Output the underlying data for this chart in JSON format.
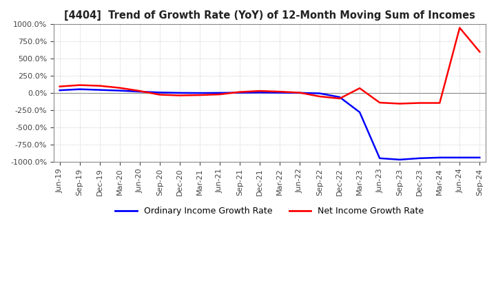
{
  "title": "[4404]  Trend of Growth Rate (YoY) of 12-Month Moving Sum of Incomes",
  "ylim": [
    -1000,
    1000
  ],
  "yticks": [
    -1000,
    -750,
    -500,
    -250,
    0,
    250,
    500,
    750,
    1000
  ],
  "background_color": "#FFFFFF",
  "grid_color": "#BBBBBB",
  "legend_labels": [
    "Ordinary Income Growth Rate",
    "Net Income Growth Rate"
  ],
  "legend_colors": [
    "#0000FF",
    "#FF0000"
  ],
  "x_labels": [
    "Jun-19",
    "Sep-19",
    "Dec-19",
    "Mar-20",
    "Jun-20",
    "Sep-20",
    "Dec-20",
    "Mar-21",
    "Jun-21",
    "Sep-21",
    "Dec-21",
    "Mar-22",
    "Jun-22",
    "Sep-22",
    "Dec-22",
    "Mar-23",
    "Jun-23",
    "Sep-23",
    "Dec-23",
    "Mar-24",
    "Jun-24",
    "Sep-24"
  ],
  "ordinary_income": [
    40,
    55,
    45,
    35,
    20,
    8,
    2,
    0,
    2,
    5,
    8,
    5,
    2,
    -5,
    -60,
    -280,
    -950,
    -970,
    -950,
    -940,
    -940,
    -940
  ],
  "net_income": [
    95,
    115,
    105,
    75,
    30,
    -25,
    -35,
    -30,
    -20,
    15,
    30,
    20,
    5,
    -50,
    -80,
    70,
    -140,
    -155,
    -145,
    -145,
    950,
    600
  ]
}
